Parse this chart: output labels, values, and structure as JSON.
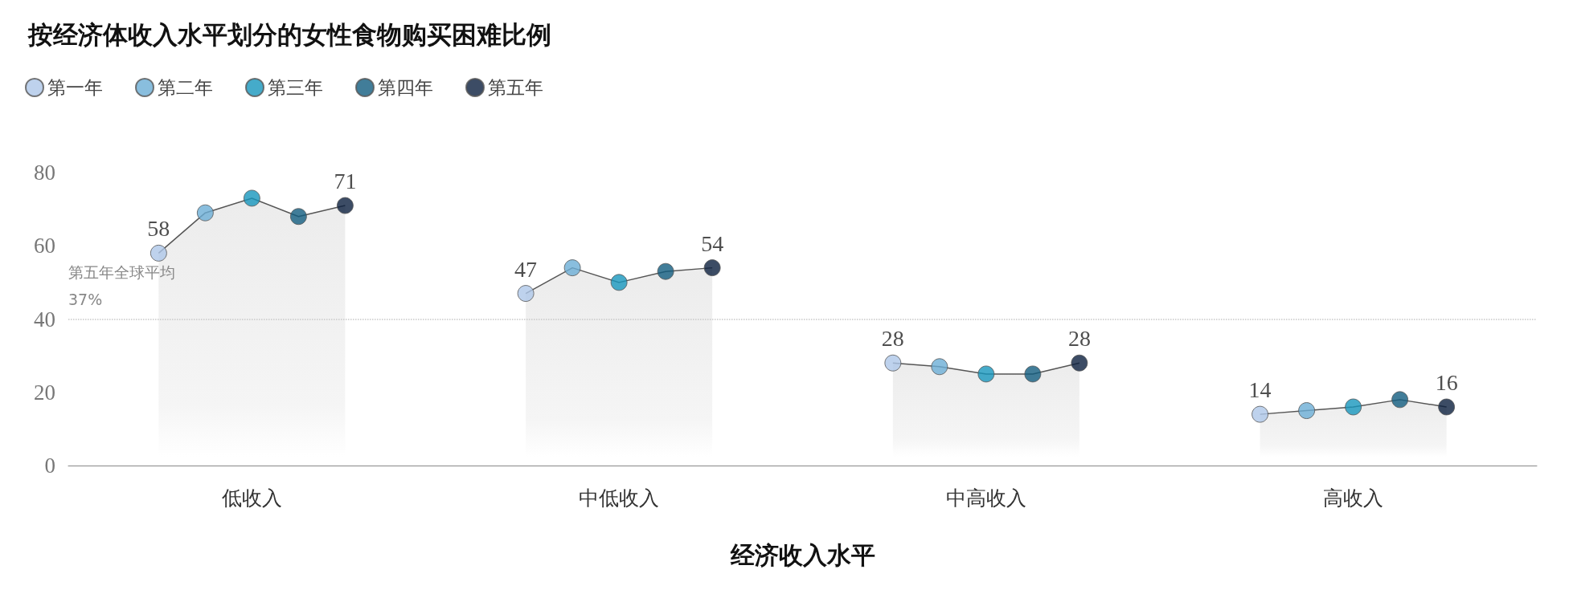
{
  "chart_data": {
    "type": "scatter",
    "title": "按经济体收入水平划分的女性食物购买困难比例",
    "xlabel": "经济收入水平",
    "categories": [
      "低收入",
      "中低收入",
      "中高收入",
      "高收入"
    ],
    "series": [
      {
        "name": "第一年",
        "color": "#aec7e8",
        "values": [
          58,
          47,
          28,
          14
        ],
        "value_labels": [
          "58",
          "47",
          "28",
          "14"
        ]
      },
      {
        "name": "第二年",
        "color": "#6baed6",
        "values": [
          69,
          54,
          27,
          15
        ]
      },
      {
        "name": "第三年",
        "color": "#1696bd",
        "values": [
          73,
          50,
          25,
          16
        ]
      },
      {
        "name": "第四年",
        "color": "#115d7f",
        "values": [
          68,
          53,
          25,
          18
        ]
      },
      {
        "name": "第五年",
        "color": "#0b1f3f",
        "values": [
          71,
          54,
          28,
          16
        ],
        "value_labels": [
          "71",
          "54",
          "28",
          "16"
        ]
      }
    ],
    "ylim": [
      0,
      80
    ],
    "yticks": [
      0,
      20,
      40,
      60,
      80
    ],
    "grid": false,
    "legend": "top left",
    "marker": "circle",
    "line_style": "solid",
    "ref_lines": [
      {
        "axis": "y",
        "value": 40,
        "label": "第五年全球平均\n37%",
        "color": "#c8c8c8",
        "line_style": "dotted"
      }
    ]
  }
}
